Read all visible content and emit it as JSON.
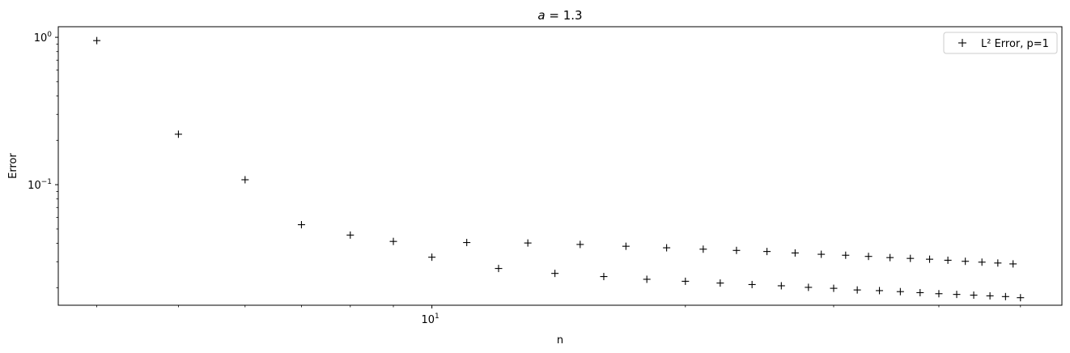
{
  "chart_data": {
    "type": "scatter",
    "title": "a = 1.3",
    "xlabel": "n",
    "ylabel": "Error",
    "x_scale": "log",
    "y_scale": "log",
    "xlim": [
      3.6,
      56
    ],
    "ylim": [
      0.0152,
      1.18
    ],
    "x_ticks": [
      {
        "value": 10,
        "label": "10^1"
      }
    ],
    "y_ticks": [
      {
        "value": 1,
        "label": "10^0"
      },
      {
        "value": 0.1,
        "label": "10^-1"
      }
    ],
    "grid": false,
    "legend_position": "top-right",
    "marker": "+",
    "marker_color": "#000000",
    "series": [
      {
        "name": "L² Error, p=1",
        "x": [
          4,
          5,
          6,
          7,
          8,
          9,
          10,
          11,
          12,
          13,
          14,
          15,
          16,
          17,
          18,
          19,
          20,
          21,
          22,
          23,
          24,
          25,
          26,
          27,
          28,
          29,
          30,
          31,
          32,
          33,
          34,
          35,
          36,
          37,
          38,
          39,
          40,
          41,
          42,
          43,
          44,
          45,
          46,
          47,
          48,
          49,
          50
        ],
        "y": [
          0.95,
          0.22,
          0.108,
          0.0535,
          0.0455,
          0.0412,
          0.0322,
          0.0405,
          0.027,
          0.0402,
          0.025,
          0.0393,
          0.0238,
          0.0382,
          0.0228,
          0.0373,
          0.0221,
          0.0365,
          0.0215,
          0.0358,
          0.021,
          0.0352,
          0.0206,
          0.0344,
          0.0201,
          0.0337,
          0.0198,
          0.0332,
          0.0193,
          0.0326,
          0.0191,
          0.032,
          0.0188,
          0.0316,
          0.0185,
          0.0312,
          0.0182,
          0.0307,
          0.018,
          0.0302,
          0.0178,
          0.0298,
          0.0176,
          0.0294,
          0.0174,
          0.029,
          0.0171
        ]
      }
    ]
  }
}
